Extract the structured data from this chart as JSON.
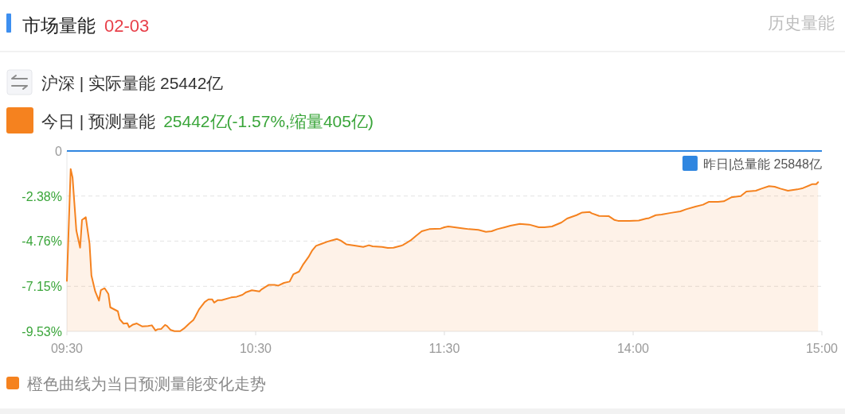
{
  "chart_data": [
    {
      "type": "line",
      "title": "市场量能",
      "subtitle": "02-03",
      "series": [
        {
          "name": "今日 | 预测量能",
          "color": "#f5821f",
          "x": [
            9.5,
            9.52,
            9.53,
            9.55,
            9.57,
            9.58,
            9.6,
            9.62,
            9.63,
            9.65,
            9.67,
            9.68,
            9.7,
            9.72,
            9.73,
            9.77,
            9.78,
            9.8,
            9.82,
            9.83,
            9.85,
            9.87,
            9.88,
            9.9,
            9.93,
            9.95,
            9.97,
            9.98,
            10.0,
            10.02,
            10.03,
            10.05,
            10.07,
            10.1,
            10.12,
            10.15,
            10.17,
            10.18,
            10.2,
            10.23,
            10.25,
            10.27,
            10.28,
            10.3,
            10.32,
            10.37,
            10.4,
            10.43,
            10.45,
            10.48,
            10.52,
            10.53,
            10.57,
            10.6,
            10.62,
            10.65,
            10.68,
            10.7,
            10.73,
            10.75,
            10.78,
            10.8,
            10.82,
            10.85,
            10.88,
            10.9,
            10.93,
            10.95,
            10.98,
            11.03,
            11.07,
            11.1,
            11.12,
            11.17,
            11.2,
            11.23,
            11.27,
            11.28,
            11.32,
            11.35,
            11.38,
            11.42,
            11.48,
            11.5
          ],
          "values": [
            -6.86,
            -0.95,
            -1.4,
            -4.2,
            -5.11,
            -3.64,
            -3.5,
            -4.9,
            -6.58,
            -7.42,
            -7.91,
            -7.35,
            -7.25,
            -7.56,
            -8.26,
            -8.47,
            -8.89,
            -9.12,
            -9.1,
            -9.31,
            -9.17,
            -9.11,
            -9.17,
            -9.27,
            -9.25,
            -9.21,
            -9.49,
            -9.42,
            -9.4,
            -9.19,
            -9.24,
            -9.46,
            -9.52,
            -9.52,
            -9.38,
            -9.1,
            -8.93,
            -8.75,
            -8.37,
            -7.98,
            -7.84,
            -7.84,
            -8.01,
            -7.88,
            -7.88,
            -7.74,
            -7.7,
            -7.6,
            -7.46,
            -7.36,
            -7.42,
            -7.32,
            -7.07,
            -7.07,
            -7.11,
            -6.97,
            -6.9,
            -6.51,
            -6.37,
            -6.02,
            -5.6,
            -5.25,
            -5.01,
            -4.9,
            -4.79,
            -4.73,
            -4.65,
            -4.73,
            -4.93,
            -5.01,
            -5.07,
            -4.98,
            -5.04,
            -5.07,
            -5.12,
            -5.11,
            -5.01,
            -4.97,
            -4.73,
            -4.48,
            -4.24,
            -4.13,
            -4.1,
            -4.03
          ],
          "upper": [
            -6.86,
            -0.95,
            -1.4,
            -4.2,
            -5.11,
            -3.64,
            -3.5,
            -4.9,
            -6.58,
            -7.42,
            -7.91,
            -7.35,
            -7.25,
            -7.56,
            -8.26,
            -8.47,
            -8.89,
            -9.12,
            -9.1,
            -9.31,
            -9.17,
            -9.11,
            -9.17,
            -9.27,
            -9.25,
            -9.21,
            -9.49,
            -9.42,
            -9.4,
            -9.19,
            -9.24,
            -9.46,
            -9.52,
            -9.52,
            -9.38,
            -9.1,
            -8.93,
            -8.75,
            -8.37,
            -7.98,
            -7.84,
            -7.84,
            -8.01,
            -7.88,
            -7.88,
            -7.74,
            -7.7,
            -7.6,
            -7.46,
            -7.36,
            -7.42,
            -7.32,
            -7.07,
            -7.07,
            -7.11,
            -6.97,
            -6.9,
            -6.51,
            -6.37,
            -6.02,
            -5.6,
            -5.25,
            -5.01,
            -4.9,
            -4.79,
            -4.73,
            -4.65,
            -4.73,
            -4.93,
            -5.01,
            -5.07,
            -4.98,
            -5.04,
            -5.07,
            -5.12,
            -5.11,
            -5.01,
            -4.97,
            -4.73,
            -4.48,
            -4.24,
            -4.13,
            -4.1,
            -4.03
          ],
          "lower": [
            -9.53,
            -9.53,
            -9.53,
            -9.53,
            -9.53,
            -9.53,
            -9.53,
            -9.53,
            -9.53,
            -9.53,
            -9.53,
            -9.53,
            -9.53,
            -9.53,
            -9.53,
            -9.53,
            -9.53,
            -9.53,
            -9.53,
            -9.53,
            -9.53,
            -9.53,
            -9.53,
            -9.53,
            -9.53,
            -9.53,
            -9.53,
            -9.53,
            -9.53,
            -9.53,
            -9.53,
            -9.53,
            -9.53,
            -9.53,
            -9.53,
            -9.53,
            -9.53,
            -9.53,
            -9.53,
            -9.53,
            -9.53,
            -9.53,
            -9.53,
            -9.53,
            -9.53,
            -9.53,
            -9.53,
            -9.53,
            -9.53,
            -9.53,
            -9.53,
            -9.53,
            -9.53,
            -9.53,
            -9.53,
            -9.53,
            -9.53,
            -9.53,
            -9.53,
            -9.53,
            -9.53,
            -9.53,
            -9.53,
            -9.53,
            -9.53,
            -9.53,
            -9.53,
            -9.53,
            -9.53,
            -9.53,
            -9.53,
            -9.53,
            -9.53,
            -9.53,
            -9.53,
            -9.53,
            -9.53,
            -9.53,
            -9.53,
            -9.53,
            -9.53,
            -9.53,
            -9.53,
            -9.53
          ]
        }
      ],
      "xlim": [
        9.5,
        11.5
      ],
      "xticks": [
        {
          "value": 9.5,
          "label": "09:30"
        },
        {
          "value": 10.5,
          "label": "10:30"
        },
        {
          "value": 11.5,
          "label": "11:30"
        }
      ],
      "ylim": [
        -9.53,
        0
      ],
      "yticks": [
        0,
        {
          "value": -2.38,
          "label": "-2.38%"
        },
        {
          "value": -4.76,
          "label": "-4.76%"
        },
        {
          "value": -7.15,
          "label": "-7.15%"
        },
        {
          "value": -9.53,
          "label": "-9.53%"
        }
      ],
      "ref_lines": [
        {
          "axis": "y",
          "value": 0,
          "color": "#2f86e0"
        }
      ],
      "annotations": [
        "历史量能",
        "沪深 | 实际量能 25442亿",
        "25442亿(-1.57%,缩量405亿)",
        "橙色曲线为当日预测量能变化走势"
      ],
      "grid": "y",
      "legend": "top left"
    },
    {
      "type": "line",
      "series": [
        {
          "color": "#f5821f",
          "x": [
            13.0,
            13.02,
            13.03,
            13.1,
            13.13,
            13.18,
            13.22,
            13.25,
            13.28,
            13.32,
            13.35,
            13.4,
            13.45,
            13.5,
            13.53,
            13.57,
            13.62,
            13.65,
            13.7,
            13.73,
            13.77,
            13.78,
            13.82,
            13.87,
            13.9,
            13.92,
            13.98,
            14.03,
            14.07,
            14.08,
            14.12,
            14.15,
            14.2,
            14.25,
            14.28,
            14.33,
            14.37,
            14.4,
            14.45,
            14.48,
            14.52,
            14.57,
            14.6,
            14.65,
            14.68,
            14.72,
            14.75,
            14.78,
            14.82,
            14.87,
            14.9,
            14.95,
            14.97,
            14.98
          ],
          "values": [
            -4.03,
            -3.99,
            -4.0,
            -4.09,
            -4.13,
            -4.17,
            -4.27,
            -4.24,
            -4.13,
            -4.03,
            -3.95,
            -3.85,
            -3.89,
            -4.03,
            -4.03,
            -3.99,
            -3.78,
            -3.57,
            -3.39,
            -3.25,
            -3.22,
            -3.29,
            -3.43,
            -3.44,
            -3.64,
            -3.69,
            -3.69,
            -3.67,
            -3.57,
            -3.56,
            -3.39,
            -3.36,
            -3.27,
            -3.19,
            -3.08,
            -2.94,
            -2.84,
            -2.69,
            -2.69,
            -2.66,
            -2.45,
            -2.38,
            -2.14,
            -2.1,
            -1.99,
            -1.86,
            -1.89,
            -1.99,
            -2.1,
            -2.03,
            -1.96,
            -1.75,
            -1.75,
            -1.65
          ],
          "upper": [
            -4.03,
            -3.99,
            -4.0,
            -4.09,
            -4.13,
            -4.17,
            -4.27,
            -4.24,
            -4.13,
            -4.03,
            -3.95,
            -3.85,
            -3.89,
            -4.03,
            -4.03,
            -3.99,
            -3.78,
            -3.57,
            -3.39,
            -3.25,
            -3.22,
            -3.29,
            -3.43,
            -3.44,
            -3.64,
            -3.69,
            -3.69,
            -3.67,
            -3.57,
            -3.56,
            -3.39,
            -3.36,
            -3.27,
            -3.19,
            -3.08,
            -2.94,
            -2.84,
            -2.69,
            -2.69,
            -2.66,
            -2.45,
            -2.38,
            -2.14,
            -2.1,
            -1.99,
            -1.86,
            -1.89,
            -1.99,
            -2.1,
            -2.03,
            -1.96,
            -1.75,
            -1.75,
            -1.65
          ],
          "lower": [
            -9.53,
            -9.53,
            -9.53,
            -9.53,
            -9.53,
            -9.53,
            -9.53,
            -9.53,
            -9.53,
            -9.53,
            -9.53,
            -9.53,
            -9.53,
            -9.53,
            -9.53,
            -9.53,
            -9.53,
            -9.53,
            -9.53,
            -9.53,
            -9.53,
            -9.53,
            -9.53,
            -9.53,
            -9.53,
            -9.53,
            -9.53,
            -9.53,
            -9.53,
            -9.53,
            -9.53,
            -9.53,
            -9.53,
            -9.53,
            -9.53,
            -9.53,
            -9.53,
            -9.53,
            -9.53,
            -9.53,
            -9.53,
            -9.53,
            -9.53,
            -9.53,
            -9.53,
            -9.53,
            -9.53,
            -9.53,
            -9.53,
            -9.53,
            -9.53,
            -9.53,
            -9.53,
            -9.53
          ]
        }
      ],
      "xlim": [
        13,
        15
      ],
      "xticks": [
        {
          "value": 14,
          "label": "14:00"
        },
        {
          "value": 15,
          "label": "15:00"
        }
      ],
      "ylim": [
        -9.53,
        0
      ],
      "yticks": [
        0,
        -2.38,
        -4.76,
        -7.15,
        -9.53
      ],
      "ref_lines": [
        {
          "axis": "y",
          "value": 0,
          "label": "昨日|总量能 25848亿",
          "color": "#2f86e0"
        }
      ],
      "grid": "y",
      "tick_labels": "x"
    }
  ]
}
